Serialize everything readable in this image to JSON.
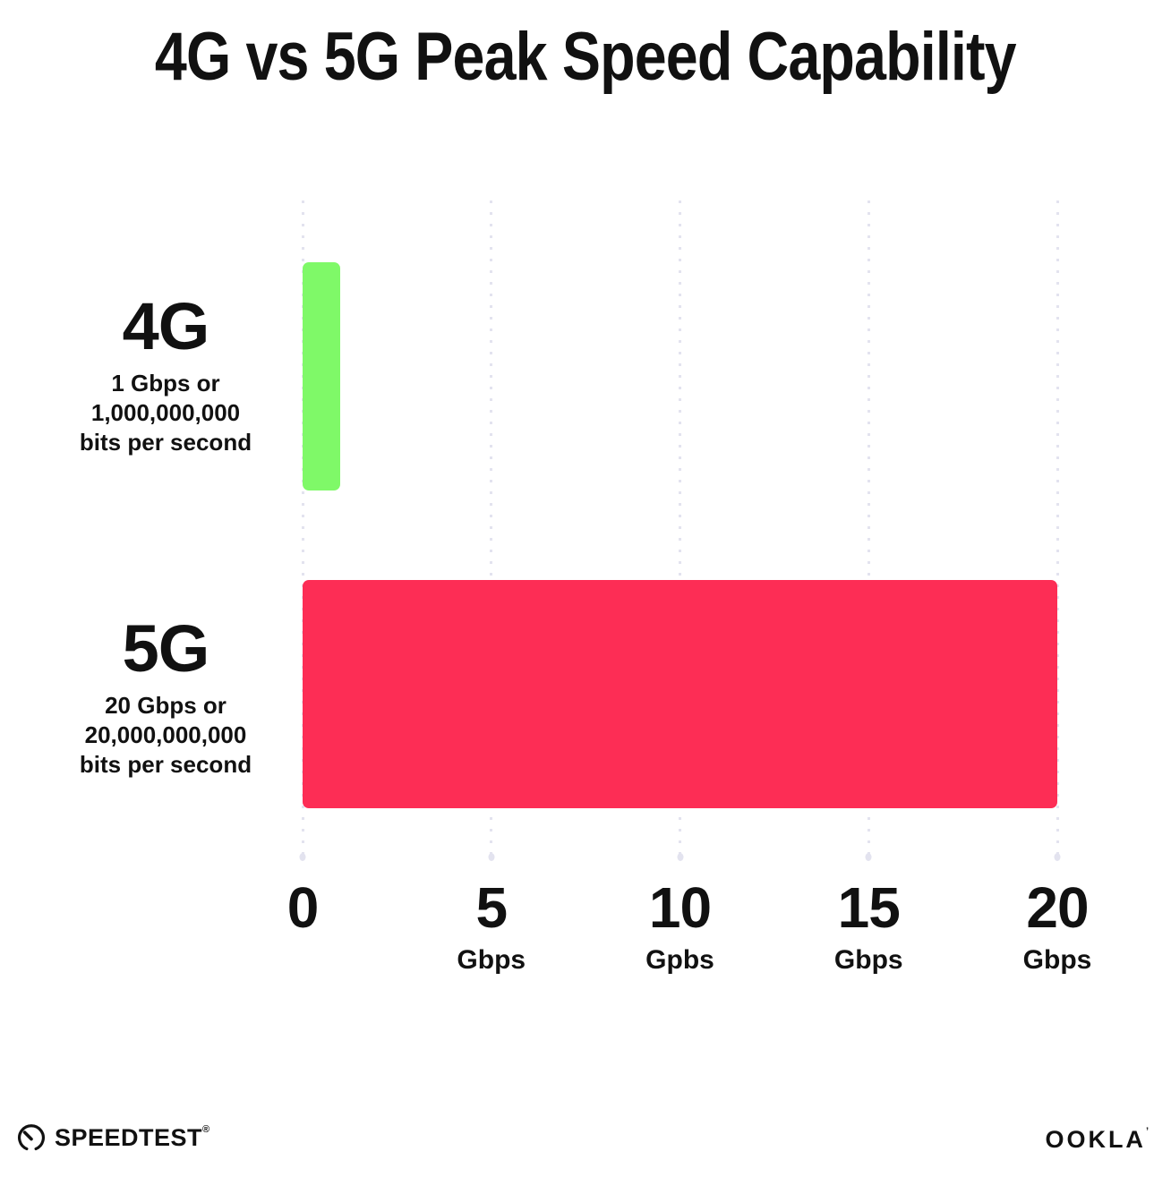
{
  "title": "4G vs 5G Peak Speed Capability",
  "chart_data": {
    "type": "bar",
    "orientation": "horizontal",
    "title": "4G vs 5G Peak Speed Capability",
    "categories": [
      "4G",
      "5G"
    ],
    "values": [
      1,
      20
    ],
    "value_unit": "Gbps",
    "xlim": [
      0,
      20
    ],
    "bar_colors": [
      "#7FF968",
      "#FD2D55"
    ],
    "grid": "dotted-vertical-lines",
    "legend": "none",
    "rows": [
      {
        "label": "4G",
        "sub_lines": [
          "1 Gbps or",
          "1,000,000,000",
          "bits per second"
        ]
      },
      {
        "label": "5G",
        "sub_lines": [
          "20 Gbps or",
          "20,000,000,000",
          "bits per second"
        ]
      }
    ],
    "x_ticks": [
      {
        "label": "0",
        "unit": ""
      },
      {
        "label": "5",
        "unit": "Gbps"
      },
      {
        "label": "10",
        "unit": "Gpbs"
      },
      {
        "label": "15",
        "unit": "Gbps"
      },
      {
        "label": "20",
        "unit": "Gbps"
      }
    ]
  },
  "footer": {
    "speedtest_label": "SPEEDTEST",
    "speedtest_mark": "®",
    "ookla_label": "OOKLA",
    "ookla_mark": "’"
  },
  "colors": {
    "bar_4g": "#7FF968",
    "bar_5g": "#FD2D55",
    "gridline": "#E3E3EF",
    "text": "#111111",
    "background": "#FFFFFF"
  }
}
